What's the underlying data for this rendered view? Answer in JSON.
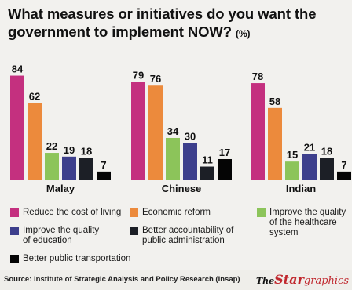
{
  "title": "What measures or initiatives do you want the government to implement NOW?",
  "title_unit": "(%)",
  "chart_data": {
    "type": "bar",
    "categories": [
      "Malay",
      "Chinese",
      "Indian"
    ],
    "series": [
      {
        "name": "Reduce the cost of living",
        "color": "#c4307f",
        "values": [
          84,
          79,
          78
        ]
      },
      {
        "name": "Economic reform",
        "color": "#ec8a3c",
        "values": [
          62,
          76,
          58
        ]
      },
      {
        "name": "Improve the quality of the healthcare system",
        "color": "#8cc45a",
        "values": [
          22,
          34,
          15
        ]
      },
      {
        "name": "Improve the quality of education",
        "color": "#3d3f8c",
        "values": [
          19,
          30,
          21
        ]
      },
      {
        "name": "Better accountability of public administration",
        "color": "#1c1f26",
        "values": [
          18,
          11,
          18
        ]
      },
      {
        "name": "Better public transportation",
        "color": "#050505",
        "values": [
          7,
          17,
          7
        ]
      }
    ],
    "ylim": [
      0,
      90
    ],
    "legend": "bottom"
  },
  "legend_lines": [
    [
      "Reduce the cost of living"
    ],
    [
      "Economic reform"
    ],
    [
      "Improve the quality",
      "of the healthcare",
      "system"
    ],
    [
      "Improve the quality",
      "of education"
    ],
    [
      "Better accountability of",
      "public administration"
    ],
    [
      "Better public transportation"
    ]
  ],
  "source": "Source: Institute of Strategic Analysis and Policy Research (Insap)",
  "brand": {
    "the": "The",
    "star": "Star",
    "graphics": "graphics"
  }
}
